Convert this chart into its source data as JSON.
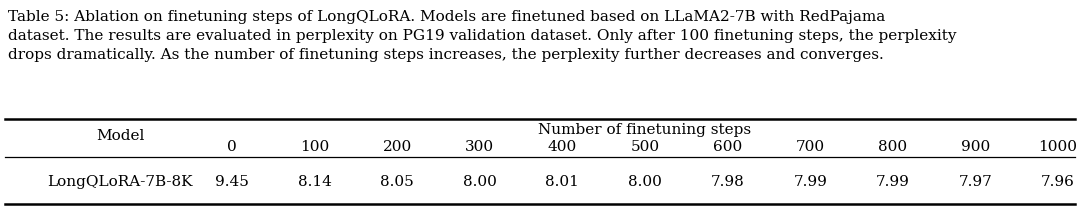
{
  "caption_line1": "Table 5: Ablation on finetuning steps of LongQLoRA. Models are finetuned based on LLaMA2-7B with RedPajama",
  "caption_line2": "dataset. The results are evaluated in perplexity on PG19 validation dataset. Only after 100 finetuning steps, the perplexity",
  "caption_line3": "drops dramatically. As the number of finetuning steps increases, the perplexity further decreases and converges.",
  "header_top": "Number of finetuning steps",
  "col_labels": [
    "0",
    "100",
    "200",
    "300",
    "400",
    "500",
    "600",
    "700",
    "800",
    "900",
    "1000"
  ],
  "row_model": "LongQLoRA-7B-8K",
  "row_values": [
    "9.45",
    "8.14",
    "8.05",
    "8.00",
    "8.01",
    "8.00",
    "7.98",
    "7.99",
    "7.99",
    "7.97",
    "7.96"
  ],
  "bg_color": "#ffffff",
  "text_color": "#000000",
  "caption_fontsize": 11.0,
  "table_fontsize": 11.0,
  "fig_width": 10.8,
  "fig_height": 2.12,
  "dpi": 100
}
